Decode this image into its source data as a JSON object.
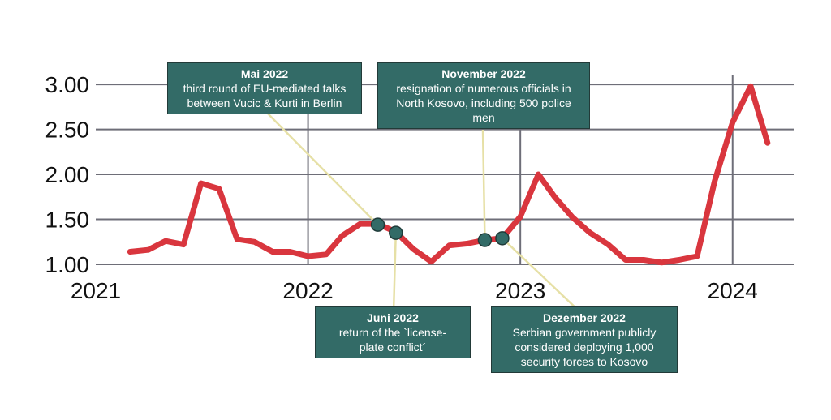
{
  "chart_data": {
    "type": "line",
    "x_type": "date",
    "xlim": [
      "2021-01-01",
      "2024-04-15"
    ],
    "ylim": [
      1.0,
      3.1
    ],
    "yticks": [
      1.0,
      1.5,
      2.0,
      2.5,
      3.0
    ],
    "ytick_labels": [
      "1.00",
      "1.50",
      "2.00",
      "2.50",
      "3.00"
    ],
    "xticks": [
      "2021-01-01",
      "2022-01-01",
      "2023-01-01",
      "2024-01-01"
    ],
    "xtick_labels": [
      "2021",
      "2022",
      "2023",
      "2024"
    ],
    "grid": true,
    "line_color": "#d9363e",
    "series": [
      {
        "x": [
          "2021-03-01",
          "2021-04-01",
          "2021-05-01",
          "2021-06-01",
          "2021-07-01",
          "2021-08-01",
          "2021-09-01",
          "2021-10-01",
          "2021-11-01",
          "2021-12-01",
          "2022-01-01",
          "2022-02-01",
          "2022-03-01",
          "2022-04-01",
          "2022-05-01",
          "2022-06-01",
          "2022-07-01",
          "2022-08-01",
          "2022-09-01",
          "2022-10-01",
          "2022-11-01",
          "2022-12-01",
          "2023-01-01",
          "2023-02-01",
          "2023-03-01",
          "2023-04-01",
          "2023-05-01",
          "2023-06-01",
          "2023-07-01",
          "2023-08-01",
          "2023-09-01",
          "2023-10-01",
          "2023-11-01",
          "2023-12-01",
          "2024-01-01",
          "2024-02-01",
          "2024-03-01"
        ],
        "y": [
          1.14,
          1.16,
          1.26,
          1.22,
          1.9,
          1.84,
          1.28,
          1.25,
          1.14,
          1.14,
          1.09,
          1.11,
          1.32,
          1.45,
          1.45,
          1.36,
          1.17,
          1.03,
          1.21,
          1.23,
          1.27,
          1.29,
          1.53,
          2.0,
          1.75,
          1.52,
          1.35,
          1.22,
          1.05,
          1.05,
          1.02,
          1.05,
          1.09,
          1.92,
          2.58,
          2.98,
          2.35
        ]
      }
    ],
    "markers": [
      {
        "x": "2022-05-01",
        "y": 1.44
      },
      {
        "x": "2022-06-01",
        "y": 1.35
      },
      {
        "x": "2022-11-01",
        "y": 1.27
      },
      {
        "x": "2022-12-01",
        "y": 1.29
      }
    ],
    "marker_color": "#336b67",
    "annotations": [
      {
        "title": "Mai 2022",
        "text": [
          "third round of EU-mediated talks",
          "between Vucic & Kurti in Berlin"
        ]
      },
      {
        "title": "November 2022",
        "text": [
          "resignation of numerous officials in",
          "North Kosovo, including 500 police",
          "men"
        ]
      },
      {
        "title": "Juni 2022",
        "text": [
          "return of the `license-",
          "plate conflict´"
        ]
      },
      {
        "title": "Dezember 2022",
        "text": [
          "Serbian government publicly",
          "considered deploying 1,000",
          "security forces to Kosovo"
        ]
      }
    ],
    "annotation_color": "#336b67",
    "connector_color": "#e6e0a6"
  }
}
